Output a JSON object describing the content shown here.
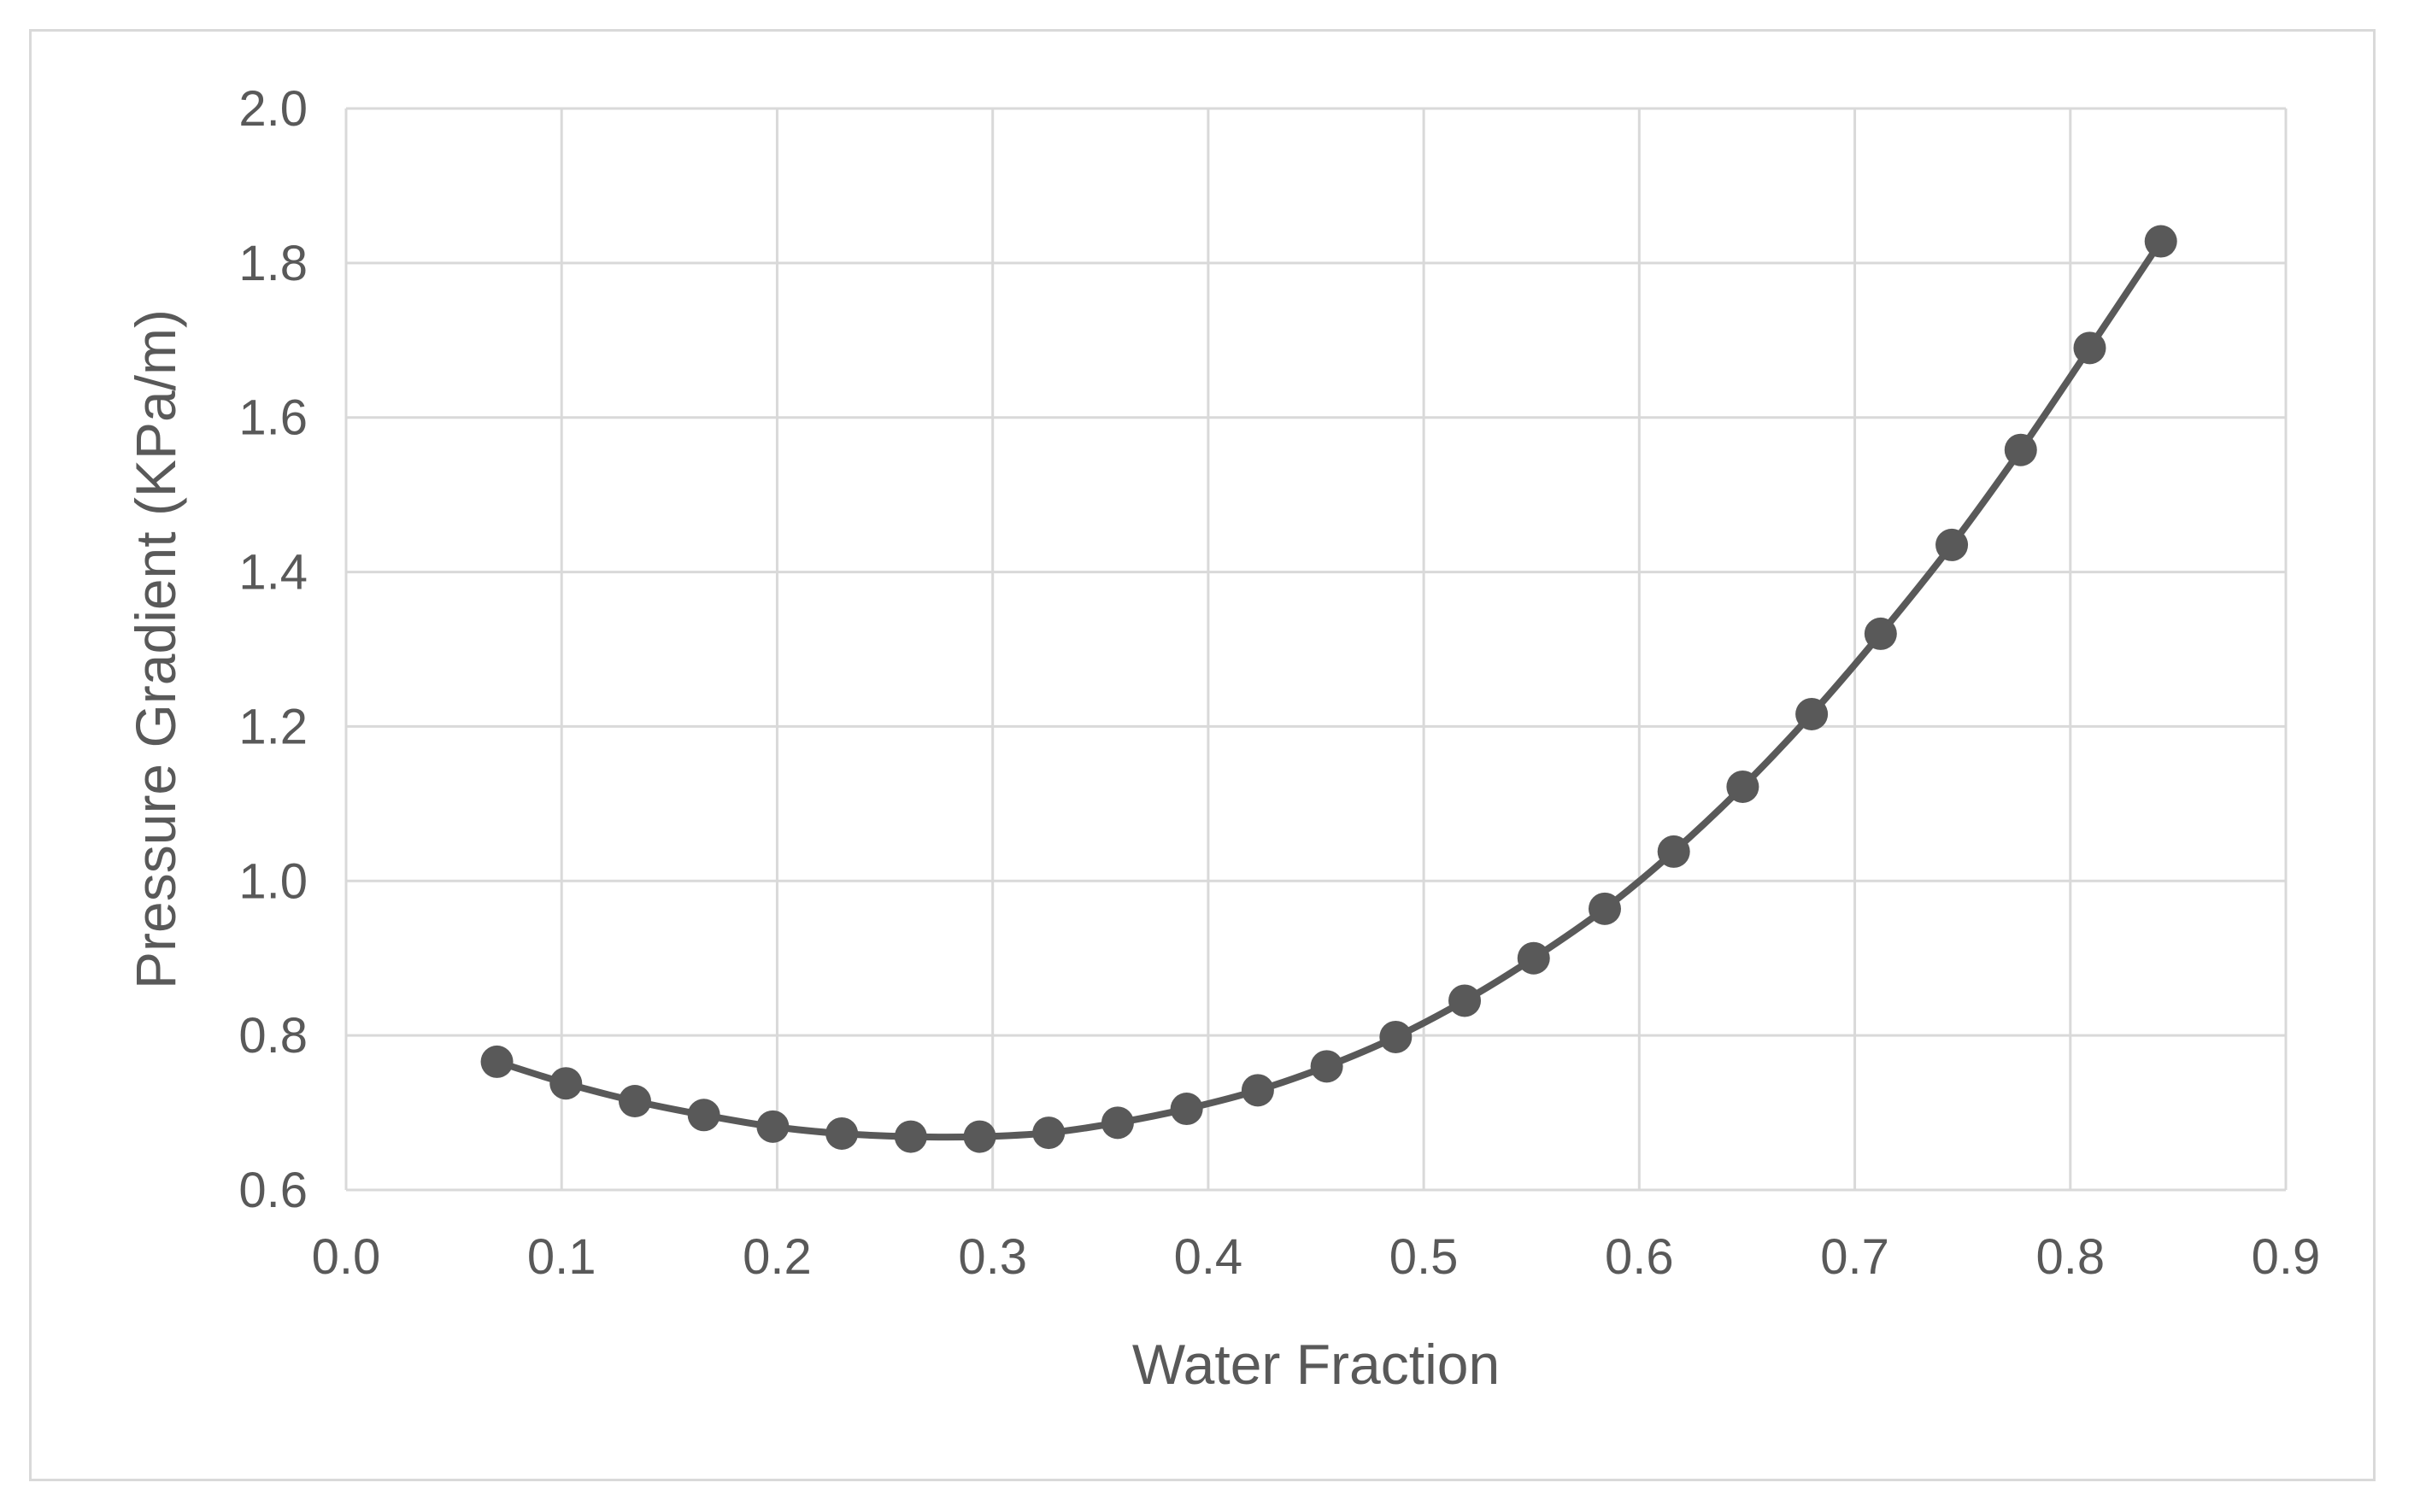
{
  "chart_data": {
    "type": "line",
    "xlabel": "Water Fraction",
    "ylabel": "Pressure Gradient (KPa/m)",
    "xlim": [
      0.0,
      0.9
    ],
    "ylim": [
      0.6,
      2.0
    ],
    "x_tick_labels": [
      "0.0",
      "0.1",
      "0.2",
      "0.3",
      "0.4",
      "0.5",
      "0.6",
      "0.7",
      "0.8",
      "0.9"
    ],
    "y_tick_labels": [
      "0.6",
      "0.8",
      "1.0",
      "1.2",
      "1.4",
      "1.6",
      "1.8",
      "2.0"
    ],
    "grid": true,
    "legend": "none",
    "series_color": "#595959",
    "grid_color": "#d9d9d9",
    "series": [
      {
        "x": [
          0.07,
          0.102,
          0.134,
          0.166,
          0.198,
          0.23,
          0.262,
          0.294,
          0.326,
          0.358,
          0.39,
          0.423,
          0.455,
          0.487,
          0.519,
          0.551,
          0.584,
          0.616,
          0.648,
          0.68,
          0.712,
          0.745,
          0.777,
          0.809,
          0.842
        ],
        "y": [
          0.766,
          0.738,
          0.715,
          0.697,
          0.682,
          0.673,
          0.669,
          0.669,
          0.674,
          0.687,
          0.705,
          0.729,
          0.76,
          0.798,
          0.845,
          0.9,
          0.964,
          1.038,
          1.122,
          1.216,
          1.32,
          1.435,
          1.558,
          1.69,
          1.828
        ]
      }
    ]
  }
}
